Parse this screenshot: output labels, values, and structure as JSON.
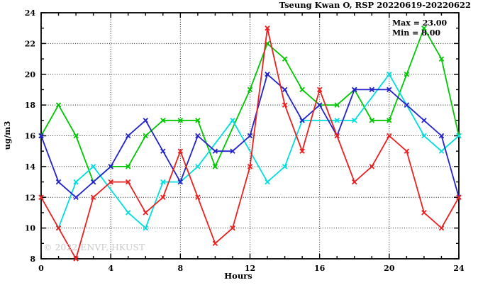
{
  "page": {
    "background": "#ffffff"
  },
  "chart_data": {
    "type": "line",
    "title": "Tseung Kwan O, RSP 20220619-20220622",
    "xlabel": "Hours",
    "ylabel": "ug/m3",
    "xlim": [
      0,
      24
    ],
    "ylim": [
      8,
      24
    ],
    "x_major_ticks": [
      0,
      4,
      8,
      12,
      16,
      20,
      24
    ],
    "x_minor_step": 1,
    "y_major_ticks": [
      8,
      10,
      12,
      14,
      16,
      18,
      20,
      22,
      24
    ],
    "y_minor_step": 1,
    "grid": "dotted",
    "legend_position": "none",
    "annotations": {
      "max": "Max = 23.00",
      "min": "Min = 8.00"
    },
    "watermark": "© 2022 ENVF, HKUST",
    "axis_color": "#000000",
    "x": [
      0,
      1,
      2,
      3,
      4,
      5,
      6,
      7,
      8,
      9,
      10,
      11,
      12,
      13,
      14,
      15,
      16,
      17,
      18,
      19,
      20,
      21,
      22,
      23,
      24
    ],
    "series": [
      {
        "name": "green",
        "color": "#00c800",
        "marker": "x",
        "values": [
          16,
          18,
          16,
          13,
          14,
          14,
          16,
          17,
          17,
          17,
          14,
          null,
          19,
          22,
          21,
          19,
          18,
          18,
          19,
          17,
          17,
          20,
          23,
          21,
          16
        ]
      },
      {
        "name": "cyan",
        "color": "#00dede",
        "marker": "x",
        "values": [
          null,
          10,
          13,
          14,
          null,
          11,
          10,
          13,
          13,
          14,
          null,
          17,
          null,
          13,
          14,
          17,
          null,
          17,
          17,
          null,
          20,
          18,
          16,
          15,
          16
        ]
      },
      {
        "name": "blue",
        "color": "#2323cd",
        "marker": "x",
        "values": [
          16,
          13,
          12,
          13,
          14,
          16,
          17,
          15,
          13,
          16,
          15,
          15,
          16,
          20,
          19,
          17,
          18,
          16,
          19,
          19,
          19,
          18,
          17,
          16,
          12
        ]
      },
      {
        "name": "red",
        "color": "#ec2020",
        "marker": "x",
        "values": [
          12,
          10,
          8,
          12,
          13,
          13,
          11,
          12,
          15,
          12,
          9,
          10,
          14,
          23,
          18,
          15,
          19,
          16,
          13,
          14,
          16,
          15,
          11,
          10,
          12
        ]
      }
    ]
  }
}
